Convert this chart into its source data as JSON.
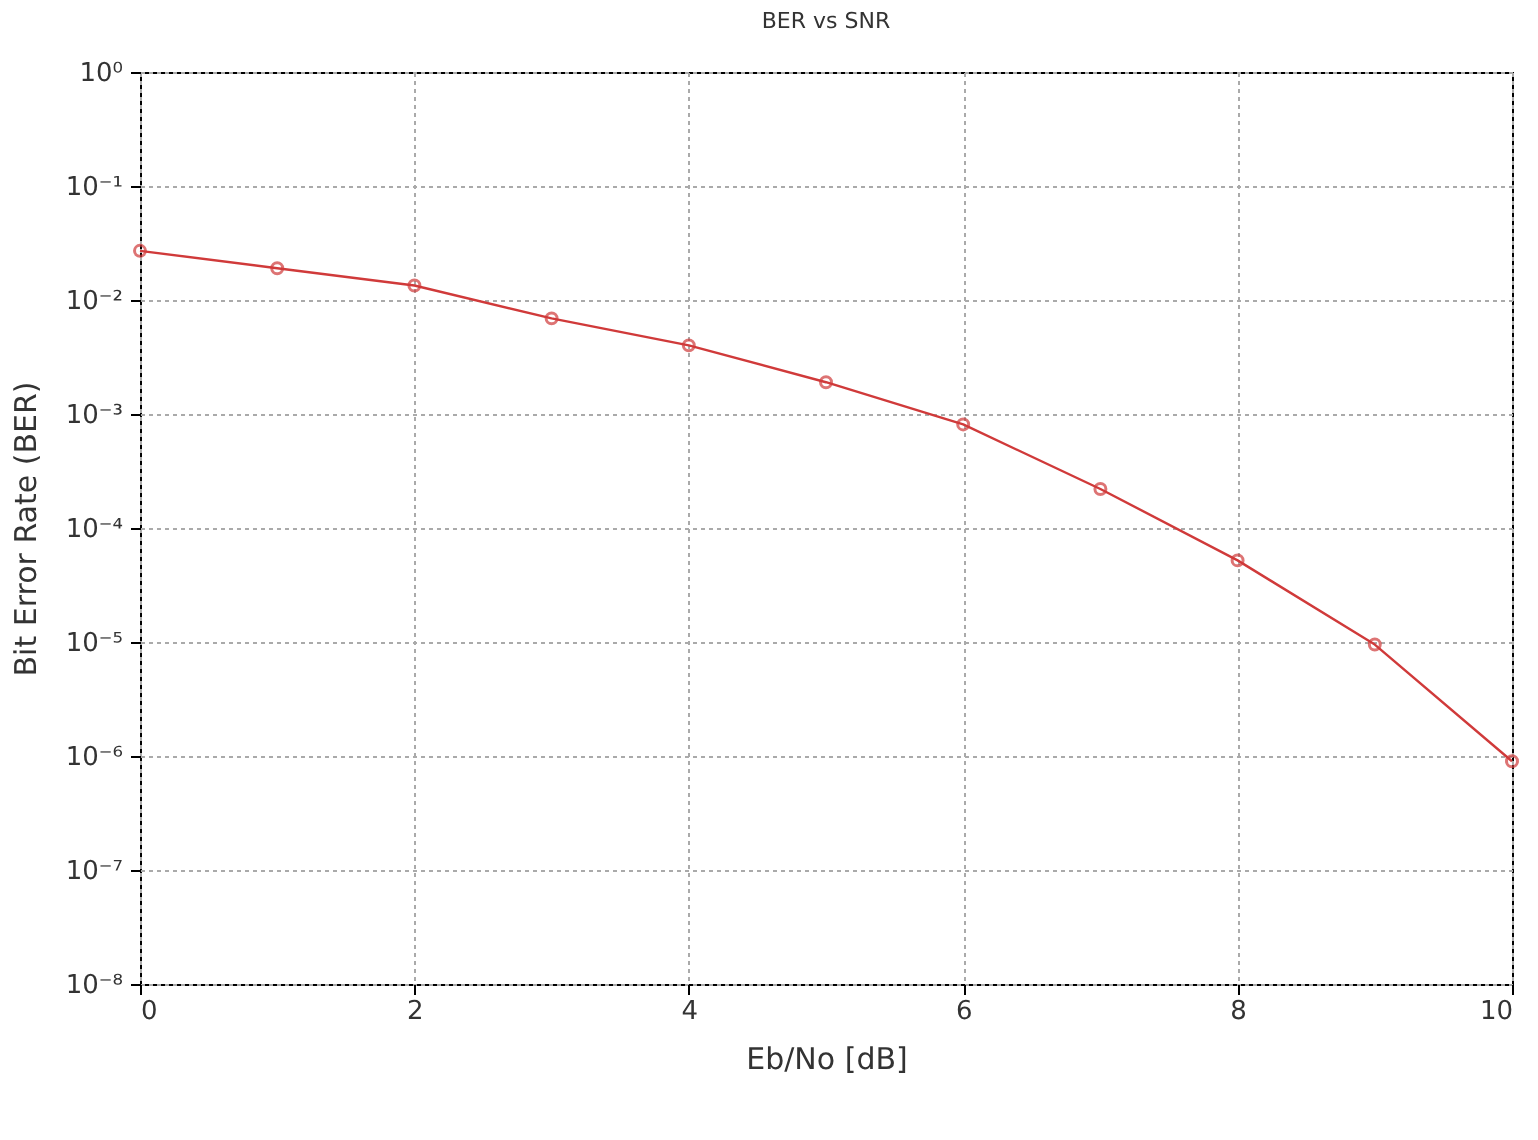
{
  "chart_data": {
    "type": "line",
    "title": "BER vs SNR",
    "xlabel": "Eb/No [dB]",
    "ylabel": "Bit Error Rate (BER)",
    "x": [
      0,
      1,
      2,
      3,
      4,
      5,
      6,
      7,
      8,
      9,
      10
    ],
    "series": [
      {
        "color": "#d03a3a",
        "values": [
          0.027,
          0.019,
          0.0134,
          0.0069,
          0.004,
          0.0019,
          0.00081,
          0.00022,
          5.2e-05,
          9.5e-06,
          9e-07
        ]
      }
    ],
    "log": "y",
    "xlim": [
      0,
      10
    ],
    "xticks": [
      0,
      2,
      4,
      6,
      8,
      10
    ],
    "ylim": [
      1e-08,
      1
    ],
    "yticks": [
      {
        "value": 1e-08,
        "label": "10⁻⁸"
      },
      {
        "value": 1e-07,
        "label": "10⁻⁷"
      },
      {
        "value": 1e-06,
        "label": "10⁻⁶"
      },
      {
        "value": 1e-05,
        "label": "10⁻⁵"
      },
      {
        "value": 0.0001,
        "label": "10⁻⁴"
      },
      {
        "value": 0.001,
        "label": "10⁻³"
      },
      {
        "value": 0.01,
        "label": "10⁻²"
      },
      {
        "value": 0.1,
        "label": "10⁻¹"
      },
      {
        "value": 1,
        "label": "10⁰"
      }
    ],
    "grid": true,
    "marker": "circle",
    "line_style": "solid"
  }
}
